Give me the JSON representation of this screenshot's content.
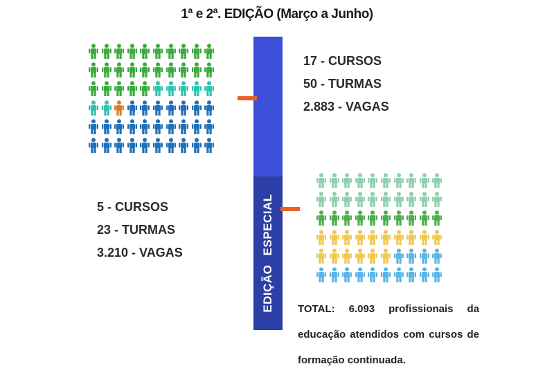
{
  "title": "1ª  e 2ª. EDIÇÃO (Março a Junho)",
  "bar_label": "EDIÇÃO  ESPECIAL",
  "first_edition_stats": {
    "cursos": "17 - CURSOS",
    "turmas": "50 - TURMAS",
    "vagas": "2.883 - VAGAS"
  },
  "special_edition_stats": {
    "cursos": "5 - CURSOS",
    "turmas": "23 - TURMAS",
    "vagas": "3.210 - VAGAS"
  },
  "total_text": "TOTAL: 6.093 profissionais da educação atendidos com cursos de formação continuada.",
  "colors": {
    "bar_top": "#3c4fd8",
    "bar_bottom": "#2c3fa6",
    "tick": "#e8622a"
  },
  "grid_left": {
    "columns": 10,
    "rows": [
      [
        "#3bab3f",
        "#3bab3f",
        "#3bab3f",
        "#3bab3f",
        "#3bab3f",
        "#3bab3f",
        "#3bab3f",
        "#3bab3f",
        "#3bab3f",
        "#3bab3f"
      ],
      [
        "#3bab3f",
        "#3bab3f",
        "#3bab3f",
        "#3bab3f",
        "#3bab3f",
        "#3bab3f",
        "#3bab3f",
        "#3bab3f",
        "#3bab3f",
        "#3bab3f"
      ],
      [
        "#3bab3f",
        "#3bab3f",
        "#3bab3f",
        "#3bab3f",
        "#3bab3f",
        "#2ec4b0",
        "#2ec4b0",
        "#2ec4b0",
        "#2ec4b0",
        "#2ec4b0"
      ],
      [
        "#2ec4b0",
        "#2ec4b0",
        "#e07a1f",
        "#1f70b8",
        "#1f70b8",
        "#1f70b8",
        "#1f70b8",
        "#1f70b8",
        "#1f70b8",
        "#1f70b8"
      ],
      [
        "#1f70b8",
        "#1f70b8",
        "#1f70b8",
        "#1f70b8",
        "#1f70b8",
        "#1f70b8",
        "#1f70b8",
        "#1f70b8",
        "#1f70b8",
        "#1f70b8"
      ],
      [
        "#1f70b8",
        "#1f70b8",
        "#1f70b8",
        "#1f70b8",
        "#1f70b8",
        "#1f70b8",
        "#1f70b8",
        "#1f70b8",
        "#1f70b8",
        "#1f70b8"
      ]
    ]
  },
  "grid_right": {
    "columns": 10,
    "rows": [
      [
        "#8fcfae",
        "#8fcfae",
        "#8fcfae",
        "#8fcfae",
        "#8fcfae",
        "#8fcfae",
        "#8fcfae",
        "#8fcfae",
        "#8fcfae",
        "#8fcfae"
      ],
      [
        "#8fcfae",
        "#8fcfae",
        "#8fcfae",
        "#8fcfae",
        "#8fcfae",
        "#8fcfae",
        "#8fcfae",
        "#8fcfae",
        "#8fcfae",
        "#8fcfae"
      ],
      [
        "#4cae4c",
        "#4cae4c",
        "#4cae4c",
        "#4cae4c",
        "#4cae4c",
        "#4cae4c",
        "#4cae4c",
        "#4cae4c",
        "#4cae4c",
        "#4cae4c"
      ],
      [
        "#f0c850",
        "#f0c850",
        "#f0c850",
        "#f0c850",
        "#f0c850",
        "#f0c850",
        "#f0c850",
        "#f0c850",
        "#f0c850",
        "#f0c850"
      ],
      [
        "#f0c850",
        "#f0c850",
        "#f0c850",
        "#f0c850",
        "#f0c850",
        "#f0c850",
        "#5bb5e6",
        "#5bb5e6",
        "#5bb5e6",
        "#5bb5e6"
      ],
      [
        "#5bb5e6",
        "#5bb5e6",
        "#5bb5e6",
        "#5bb5e6",
        "#5bb5e6",
        "#5bb5e6",
        "#5bb5e6",
        "#5bb5e6",
        "#5bb5e6",
        "#5bb5e6"
      ]
    ]
  }
}
